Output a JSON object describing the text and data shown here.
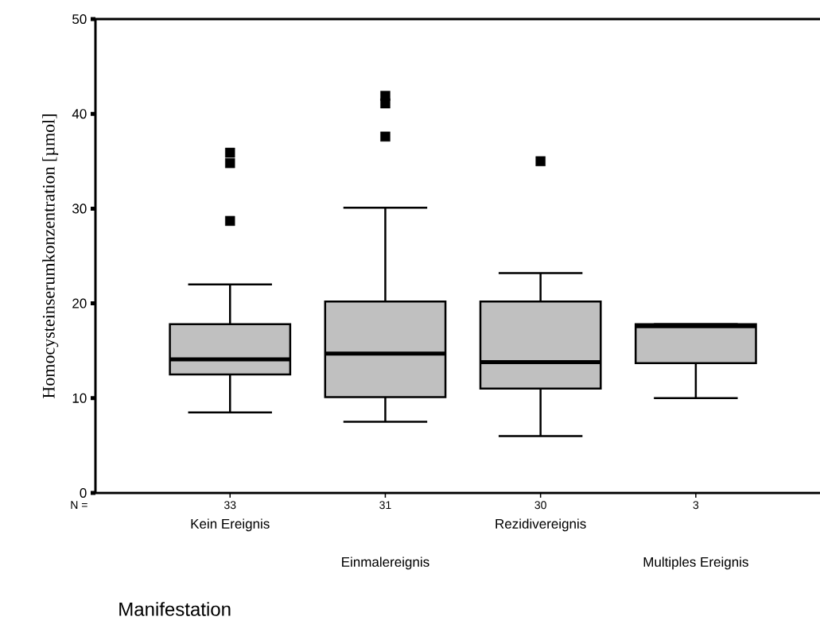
{
  "chart_data": {
    "type": "box",
    "ylabel": "Homocysteinserumkonzentration [µmol]",
    "xlabel": "Manifestation",
    "categories": [
      "Kein Ereignis",
      "Einmalereignis",
      "Rezidivereignis",
      "Multiples Ereignis"
    ],
    "color": "#c0c0c0",
    "marker": "square",
    "boxes": [
      {
        "low": 8.5,
        "q1": 12.5,
        "median": 14.1,
        "q3": 17.8,
        "high": 22.0,
        "outliers": [
          35.9,
          34.8,
          28.7
        ]
      },
      {
        "low": 7.5,
        "q1": 10.1,
        "median": 14.7,
        "q3": 20.2,
        "high": 30.1,
        "outliers": [
          41.9,
          41.1,
          37.6
        ]
      },
      {
        "low": 6.0,
        "q1": 11.0,
        "median": 13.8,
        "q3": 20.2,
        "high": 23.2,
        "outliers": [
          35.0
        ]
      },
      {
        "low": 10.0,
        "q1": 13.7,
        "median": 17.6,
        "q3": 17.8,
        "high": 17.8
      }
    ],
    "ylim": [
      0,
      50
    ],
    "yticks": [
      0,
      10,
      20,
      30,
      40,
      50
    ],
    "annotations": [
      "N =",
      "33",
      "31",
      "30",
      "3"
    ]
  }
}
